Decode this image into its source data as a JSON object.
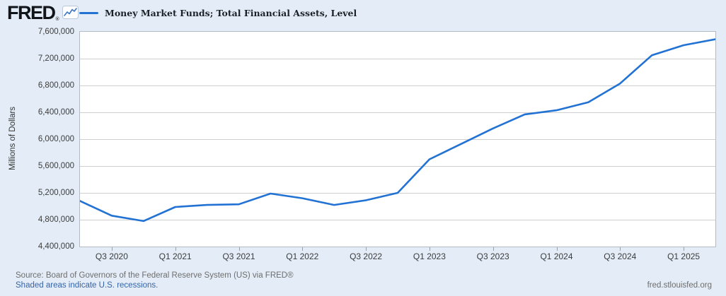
{
  "header": {
    "logo_text": "FRED",
    "logo_registered": "®",
    "legend_label": "Money Market Funds; Total Financial Assets, Level"
  },
  "colors": {
    "line": "#2272d4",
    "page_background": "#e4edf7",
    "plot_background": "#ffffff",
    "gridline": "#cfcfcf",
    "link": "#3663a5"
  },
  "chart_data": {
    "type": "line",
    "title": "Money Market Funds; Total Financial Assets, Level",
    "ylabel": "Millions of Dollars",
    "ylim": [
      4400000,
      7600000
    ],
    "ytick_interval": 400000,
    "ytick_labels": [
      "7,600,000",
      "7,200,000",
      "6,800,000",
      "6,400,000",
      "6,000,000",
      "5,600,000",
      "5,200,000",
      "4,800,000",
      "4,400,000"
    ],
    "grid": true,
    "legend_position": "top-left",
    "x": [
      "Q2 2020",
      "Q3 2020",
      "Q4 2020",
      "Q1 2021",
      "Q2 2021",
      "Q3 2021",
      "Q4 2021",
      "Q1 2022",
      "Q2 2022",
      "Q3 2022",
      "Q4 2022",
      "Q1 2023",
      "Q2 2023",
      "Q3 2023",
      "Q4 2023",
      "Q1 2024",
      "Q2 2024",
      "Q3 2024",
      "Q4 2024",
      "Q1 2025",
      "Q2 2025"
    ],
    "values": [
      5080000,
      4860000,
      4780000,
      4990000,
      5020000,
      5030000,
      5190000,
      5120000,
      5020000,
      5090000,
      5200000,
      5700000,
      5930000,
      6160000,
      6370000,
      6430000,
      6550000,
      6830000,
      7250000,
      7400000,
      7490000
    ],
    "xtick_labels": [
      "Q3 2020",
      "Q1 2021",
      "Q3 2021",
      "Q1 2022",
      "Q3 2022",
      "Q1 2023",
      "Q3 2023",
      "Q1 2024",
      "Q3 2024",
      "Q1 2025"
    ]
  },
  "footer": {
    "source_line": "Source: Board of Governors of the Federal Reserve System (US) via FRED®",
    "recession_note": "Shaded areas indicate U.S. recessions.",
    "site_link": "fred.stlouisfed.org"
  }
}
